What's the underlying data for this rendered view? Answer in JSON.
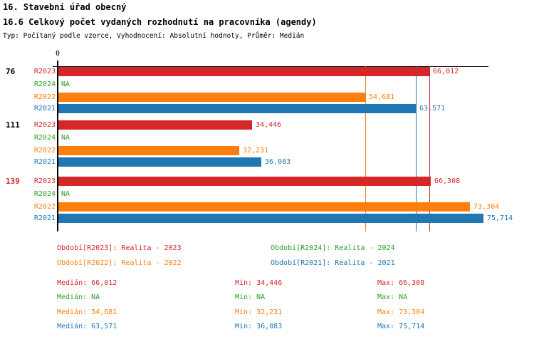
{
  "header": {
    "title": "16. Stavební úřad obecný",
    "subtitle": "16.6 Celkový počet vydaných rozhodnutí na pracovníka (agendy)",
    "meta": "Typ: Počítaný podle vzorce, Vyhodnocení: Absolutní hodnoty, Průměr: Medián"
  },
  "colors": {
    "red": "#d62728",
    "green": "#2ca02c",
    "orange": "#ff7f0e",
    "blue": "#1f77b4",
    "axis": "#000000"
  },
  "chart_data": {
    "type": "bar",
    "orientation": "horizontal",
    "value_axis": {
      "origin_label": "0",
      "approx_max": 76500,
      "gridlines": false
    },
    "series_order": [
      "R2023",
      "R2024",
      "R2022",
      "R2021"
    ],
    "series_colors": {
      "R2023": "#d62728",
      "R2024": "#2ca02c",
      "R2022": "#ff7f0e",
      "R2021": "#1f77b4"
    },
    "groups": [
      {
        "label": "76",
        "label_color": "#000000",
        "bars": [
          {
            "series": "R2023",
            "value": 66012,
            "display": "66,012"
          },
          {
            "series": "R2024",
            "value": null,
            "display": "NA"
          },
          {
            "series": "R2022",
            "value": 54681,
            "display": "54,681"
          },
          {
            "series": "R2021",
            "value": 63571,
            "display": "63,571"
          }
        ]
      },
      {
        "label": "111",
        "label_color": "#000000",
        "bars": [
          {
            "series": "R2023",
            "value": 34446,
            "display": "34,446"
          },
          {
            "series": "R2024",
            "value": null,
            "display": "NA"
          },
          {
            "series": "R2022",
            "value": 32231,
            "display": "32,231"
          },
          {
            "series": "R2021",
            "value": 36083,
            "display": "36,083"
          }
        ]
      },
      {
        "label": "139",
        "label_color": "#d62728",
        "bars": [
          {
            "series": "R2023",
            "value": 66308,
            "display": "66,308"
          },
          {
            "series": "R2024",
            "value": null,
            "display": "NA"
          },
          {
            "series": "R2022",
            "value": 73304,
            "display": "73,304"
          },
          {
            "series": "R2021",
            "value": 75714,
            "display": "75,714"
          }
        ]
      }
    ],
    "reference_lines": [
      {
        "series": "R2022",
        "value": 54681,
        "color": "#ff7f0e"
      },
      {
        "series": "R2021",
        "value": 63571,
        "color": "#1f77b4"
      },
      {
        "series": "R2023",
        "value": 66012,
        "color": "#d62728"
      }
    ]
  },
  "legend": {
    "items": [
      {
        "label": "Období[R2023]: Realita - 2023",
        "color": "#d62728",
        "col": 0,
        "row": 0
      },
      {
        "label": "Období[R2024]: Realita - 2024",
        "color": "#2ca02c",
        "col": 1,
        "row": 0
      },
      {
        "label": "Období[R2022]: Realita - 2022",
        "color": "#ff7f0e",
        "col": 0,
        "row": 1
      },
      {
        "label": "Období[R2021]: Realita - 2021",
        "color": "#1f77b4",
        "col": 1,
        "row": 1
      }
    ]
  },
  "stats": {
    "rows": [
      {
        "color": "#d62728",
        "median": "Medián: 66,012",
        "min": "Min: 34,446",
        "max": "Max: 66,308"
      },
      {
        "color": "#2ca02c",
        "median": "Medián: NA",
        "min": "Min: NA",
        "max": "Max: NA"
      },
      {
        "color": "#ff7f0e",
        "median": "Medián: 54,681",
        "min": "Min: 32,231",
        "max": "Max: 73,304"
      },
      {
        "color": "#1f77b4",
        "median": "Medián: 63,571",
        "min": "Min: 36,083",
        "max": "Max: 75,714"
      }
    ]
  }
}
